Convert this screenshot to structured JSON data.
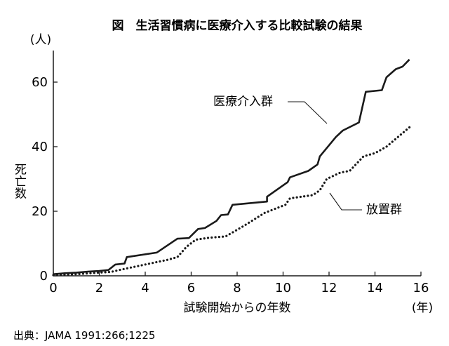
{
  "chart_data": {
    "type": "line",
    "title": "図　生活習慣病に医療介入する比較試験の結果",
    "xlabel": "試験開始からの年数",
    "xunit": "(年)",
    "ylabel": "死亡数",
    "yunit": "(人)",
    "xlim": [
      0,
      16
    ],
    "ylim": [
      0,
      70
    ],
    "x_ticks": [
      0,
      2,
      4,
      6,
      8,
      10,
      12,
      14,
      16
    ],
    "y_ticks": [
      0,
      20,
      40,
      60
    ],
    "grid": false,
    "series": [
      {
        "name": "医療介入群",
        "style": "solid",
        "color": "#1a1a1a",
        "points": [
          [
            0,
            0.5
          ],
          [
            0.5,
            0.8
          ],
          [
            1.0,
            1.0
          ],
          [
            1.5,
            1.3
          ],
          [
            2.0,
            1.5
          ],
          [
            2.4,
            1.8
          ],
          [
            2.7,
            3.5
          ],
          [
            3.1,
            3.8
          ],
          [
            3.2,
            5.8
          ],
          [
            4.5,
            7.2
          ],
          [
            5.4,
            11.5
          ],
          [
            5.9,
            11.7
          ],
          [
            6.3,
            14.5
          ],
          [
            6.6,
            14.8
          ],
          [
            7.1,
            17.0
          ],
          [
            7.3,
            18.8
          ],
          [
            7.6,
            19.0
          ],
          [
            7.8,
            22.0
          ],
          [
            9.3,
            23.0
          ],
          [
            9.3,
            24.5
          ],
          [
            10.2,
            29.0
          ],
          [
            10.3,
            30.5
          ],
          [
            11.1,
            32.5
          ],
          [
            11.5,
            34.5
          ],
          [
            11.6,
            37.0
          ],
          [
            12.3,
            43.0
          ],
          [
            12.6,
            45.0
          ],
          [
            13.3,
            47.5
          ],
          [
            13.6,
            57.0
          ],
          [
            14.3,
            57.5
          ],
          [
            14.5,
            61.5
          ],
          [
            14.9,
            64.0
          ],
          [
            15.2,
            64.8
          ],
          [
            15.5,
            67.0
          ]
        ]
      },
      {
        "name": "放置群",
        "style": "dotted",
        "color": "#1a1a1a",
        "points": [
          [
            0,
            0.2
          ],
          [
            1.0,
            0.5
          ],
          [
            2.0,
            1.0
          ],
          [
            2.5,
            1.2
          ],
          [
            3.0,
            2.0
          ],
          [
            4.0,
            3.5
          ],
          [
            5.0,
            5.0
          ],
          [
            5.4,
            5.8
          ],
          [
            5.8,
            9.0
          ],
          [
            6.2,
            11.2
          ],
          [
            6.8,
            11.8
          ],
          [
            7.5,
            12.2
          ],
          [
            8.3,
            15.5
          ],
          [
            9.2,
            19.5
          ],
          [
            10.1,
            22.0
          ],
          [
            10.3,
            24.0
          ],
          [
            11.3,
            25.0
          ],
          [
            11.6,
            26.5
          ],
          [
            11.9,
            30.0
          ],
          [
            12.5,
            32.0
          ],
          [
            12.9,
            32.5
          ],
          [
            13.5,
            37.0
          ],
          [
            14.0,
            38.0
          ],
          [
            14.5,
            40.0
          ],
          [
            15.0,
            43.0
          ],
          [
            15.5,
            46.0
          ]
        ]
      }
    ]
  },
  "source": "出典：JAMA 1991:266;1225"
}
